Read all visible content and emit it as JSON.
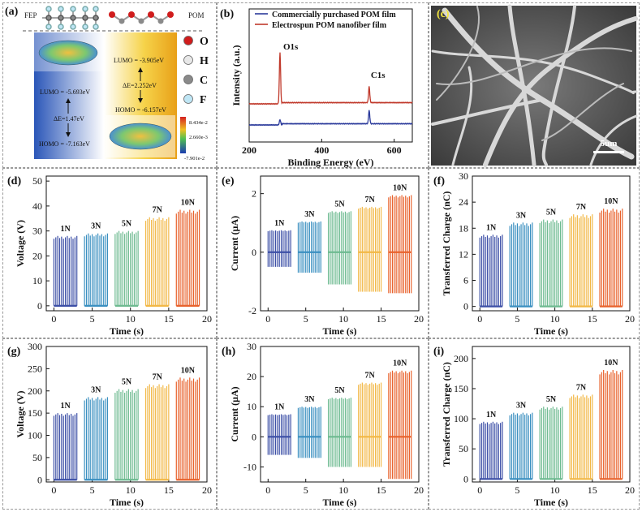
{
  "panel_a": {
    "label": "(a)",
    "fep_label": "FEP",
    "pom_label": "POM",
    "fep_lumo": "LUMO = -5.693eV",
    "fep_gap": "ΔE=1.47eV",
    "fep_homo": "HOMO = -7.163eV",
    "pom_lumo": "LUMO = -3.905eV",
    "pom_gap": "ΔE=2.252eV",
    "pom_homo": "HOMO = -6.157eV",
    "atoms": [
      "O",
      "H",
      "C",
      "F"
    ],
    "atom_colors": [
      "#d01c1c",
      "#e8e8e8",
      "#8a8a8a",
      "#bfe6f5"
    ],
    "colorbar": [
      "8.434e-2",
      "2.660e-3",
      "-7.901e-2"
    ]
  },
  "panel_c": {
    "label": "(c)",
    "scale": "5um"
  },
  "chart_data": [
    {
      "id": "b",
      "label": "(b)",
      "type": "line",
      "xlabel": "Binding Energy (eV)",
      "ylabel": "Intensity (a.u.)",
      "xlim": [
        200,
        650
      ],
      "xticks": [
        200,
        400,
        600
      ],
      "series": [
        {
          "name": "Commercially purchased POM film",
          "color": "#2b3a9b"
        },
        {
          "name": "Electrospun POM nanofiber film",
          "color": "#c0392b"
        }
      ],
      "annotations": [
        "O1s",
        "C1s"
      ],
      "peaks": [
        {
          "series": 0,
          "x": 285,
          "height": 0.06
        },
        {
          "series": 0,
          "x": 531,
          "height": 0.15
        },
        {
          "series": 1,
          "x": 285,
          "height": 0.58
        },
        {
          "series": 1,
          "x": 531,
          "height": 0.18
        }
      ]
    },
    {
      "id": "d",
      "label": "(d)",
      "type": "line",
      "xlabel": "Time (s)",
      "ylabel": "Voltage (V)",
      "ylim": [
        -2,
        52
      ],
      "yticks": [
        0,
        10,
        20,
        30,
        40,
        50
      ],
      "xlim": [
        -1,
        20
      ],
      "xticks": [
        0,
        5,
        10,
        15,
        20
      ],
      "groups": [
        {
          "label": "1N",
          "x0": 0,
          "x1": 3,
          "max": 28,
          "min": 0
        },
        {
          "label": "3N",
          "x0": 4,
          "x1": 7,
          "max": 29,
          "min": 0
        },
        {
          "label": "5N",
          "x0": 8,
          "x1": 11,
          "max": 30,
          "min": 0
        },
        {
          "label": "7N",
          "x0": 12,
          "x1": 15,
          "max": 35.5,
          "min": 0
        },
        {
          "label": "10N",
          "x0": 16,
          "x1": 19,
          "max": 38.5,
          "min": 0
        }
      ]
    },
    {
      "id": "e",
      "label": "(e)",
      "type": "line",
      "xlabel": "Time (s)",
      "ylabel": "Current (μA)",
      "ylim": [
        -2,
        2.6
      ],
      "yticks": [
        -2,
        0,
        2
      ],
      "xlim": [
        -1,
        20
      ],
      "xticks": [
        0,
        5,
        10,
        15,
        20
      ],
      "groups": [
        {
          "label": "1N",
          "x0": 0,
          "x1": 3,
          "max": 0.75,
          "min": -0.5
        },
        {
          "label": "3N",
          "x0": 4,
          "x1": 7,
          "max": 1.05,
          "min": -0.7
        },
        {
          "label": "5N",
          "x0": 8,
          "x1": 11,
          "max": 1.4,
          "min": -1.1
        },
        {
          "label": "7N",
          "x0": 12,
          "x1": 15,
          "max": 1.55,
          "min": -1.35
        },
        {
          "label": "10N",
          "x0": 16,
          "x1": 19,
          "max": 1.95,
          "min": -1.4
        }
      ]
    },
    {
      "id": "f",
      "label": "(f)",
      "type": "line",
      "xlabel": "Time (s)",
      "ylabel": "Transferred Charge (nC)",
      "ylim": [
        -1,
        30
      ],
      "yticks": [
        0,
        6,
        12,
        18,
        24,
        30
      ],
      "xlim": [
        -1,
        20
      ],
      "xticks": [
        0,
        5,
        10,
        15,
        20
      ],
      "groups": [
        {
          "label": "1N",
          "x0": 0,
          "x1": 3,
          "max": 16.5,
          "min": 0
        },
        {
          "label": "3N",
          "x0": 4,
          "x1": 7,
          "max": 19.3,
          "min": 0
        },
        {
          "label": "5N",
          "x0": 8,
          "x1": 11,
          "max": 20,
          "min": 0
        },
        {
          "label": "7N",
          "x0": 12,
          "x1": 15,
          "max": 21.2,
          "min": 0
        },
        {
          "label": "10N",
          "x0": 16,
          "x1": 19,
          "max": 22.5,
          "min": 0
        }
      ]
    },
    {
      "id": "g",
      "label": "(g)",
      "type": "line",
      "xlabel": "Time (s)",
      "ylabel": "Voltage (V)",
      "ylim": [
        -5,
        300
      ],
      "yticks": [
        0,
        50,
        100,
        150,
        200,
        250,
        300
      ],
      "xlim": [
        -1,
        20
      ],
      "xticks": [
        0,
        5,
        10,
        15,
        20
      ],
      "groups": [
        {
          "label": "1N",
          "x0": 0,
          "x1": 3,
          "max": 150,
          "min": 0
        },
        {
          "label": "3N",
          "x0": 4,
          "x1": 7,
          "max": 186,
          "min": 0
        },
        {
          "label": "5N",
          "x0": 8,
          "x1": 11,
          "max": 204,
          "min": 0
        },
        {
          "label": "7N",
          "x0": 12,
          "x1": 15,
          "max": 215,
          "min": 0
        },
        {
          "label": "10N",
          "x0": 16,
          "x1": 19,
          "max": 230,
          "min": 0
        }
      ]
    },
    {
      "id": "h",
      "label": "(h)",
      "type": "line",
      "xlabel": "Time (s)",
      "ylabel": "Current (μA)",
      "ylim": [
        -15,
        30
      ],
      "yticks": [
        -10,
        0,
        10,
        20,
        30
      ],
      "xlim": [
        -1,
        20
      ],
      "xticks": [
        0,
        5,
        10,
        15,
        20
      ],
      "groups": [
        {
          "label": "1N",
          "x0": 0,
          "x1": 3,
          "max": 7.5,
          "min": -6
        },
        {
          "label": "3N",
          "x0": 4,
          "x1": 7,
          "max": 10,
          "min": -7
        },
        {
          "label": "5N",
          "x0": 8,
          "x1": 11,
          "max": 13,
          "min": -10
        },
        {
          "label": "7N",
          "x0": 12,
          "x1": 15,
          "max": 18,
          "min": -10
        },
        {
          "label": "10N",
          "x0": 16,
          "x1": 19,
          "max": 22,
          "min": -14
        }
      ]
    },
    {
      "id": "i",
      "label": "(i)",
      "type": "line",
      "xlabel": "Time (s)",
      "ylabel": "Transferred Charge (nC)",
      "ylim": [
        -5,
        220
      ],
      "yticks": [
        0,
        50,
        100,
        150,
        200
      ],
      "xlim": [
        -1,
        20
      ],
      "xticks": [
        0,
        5,
        10,
        15,
        20
      ],
      "groups": [
        {
          "label": "1N",
          "x0": 0,
          "x1": 3,
          "max": 95,
          "min": 0
        },
        {
          "label": "3N",
          "x0": 4,
          "x1": 7,
          "max": 110,
          "min": 0
        },
        {
          "label": "5N",
          "x0": 8,
          "x1": 11,
          "max": 120,
          "min": 0
        },
        {
          "label": "7N",
          "x0": 12,
          "x1": 15,
          "max": 140,
          "min": 0
        },
        {
          "label": "10N",
          "x0": 16,
          "x1": 19,
          "max": 181,
          "min": 0
        }
      ]
    }
  ],
  "force_colors": [
    "#3c4fa6",
    "#3a8fc0",
    "#6dba90",
    "#f2b846",
    "#e8622c"
  ]
}
